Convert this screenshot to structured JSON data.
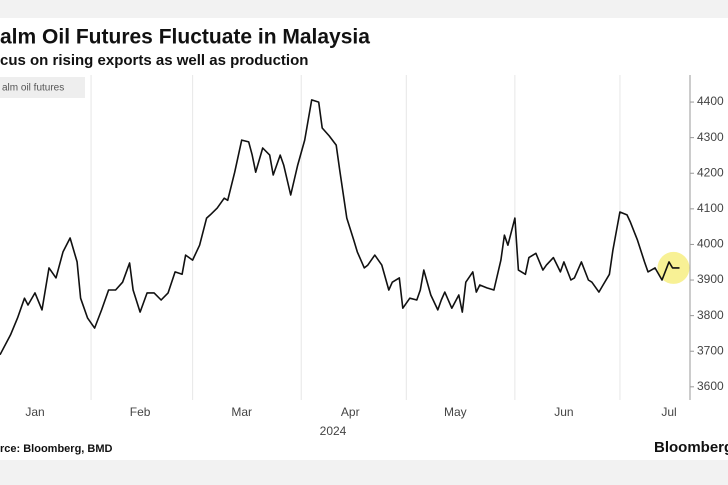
{
  "chart_data": {
    "type": "line",
    "title": "alm Oil Futures Fluctuate in Malaysia",
    "subtitle": "cus on rising exports as well as production",
    "legend_label": "alm oil futures",
    "source": "rce: Bloomberg, BMD",
    "brand": "Bloomberg",
    "year_label": "2024",
    "color": "#111111",
    "highlight_color": "#f7ef8a",
    "xlim": [
      6,
      203
    ],
    "xticks": [
      {
        "value": 16,
        "label": "Jan"
      },
      {
        "value": 46,
        "label": "Feb"
      },
      {
        "value": 75,
        "label": "Mar"
      },
      {
        "value": 106,
        "label": "Apr"
      },
      {
        "value": 136,
        "label": "May"
      },
      {
        "value": 167,
        "label": "Jun"
      },
      {
        "value": 197,
        "label": "Jul"
      }
    ],
    "xgrid": [
      32,
      61,
      92,
      122,
      153,
      183
    ],
    "ylim": [
      3563,
      4476
    ],
    "yticks": [
      3600,
      3700,
      3800,
      3900,
      4000,
      4100,
      4200,
      4300,
      4400
    ],
    "x": [
      6,
      9,
      11,
      13,
      14,
      16,
      18,
      20,
      22,
      24,
      26,
      28,
      29,
      31,
      33,
      35,
      37,
      39,
      41,
      43,
      44,
      46,
      48,
      50,
      52,
      54,
      56,
      58,
      59,
      61,
      63,
      65,
      66,
      68,
      70,
      71,
      73,
      75,
      77,
      78,
      79,
      81,
      83,
      84,
      86,
      87,
      89,
      91,
      93,
      95,
      97,
      98,
      100,
      102,
      103,
      105,
      107,
      108,
      110,
      111,
      113,
      115,
      117,
      118,
      120,
      121,
      123,
      125,
      126,
      127,
      129,
      131,
      132,
      133,
      135,
      137,
      138,
      139,
      141,
      142,
      143,
      145,
      147,
      149,
      150,
      151,
      153,
      154,
      156,
      157,
      159,
      161,
      162,
      164,
      166,
      167,
      169,
      170,
      172,
      174,
      175,
      177,
      178,
      180,
      181,
      183,
      185,
      186,
      188,
      190,
      191,
      193,
      195,
      197,
      198,
      200
    ],
    "values": [
      3690,
      3746,
      3793,
      3849,
      3830,
      3864,
      3816,
      3934,
      3906,
      3979,
      4018,
      3951,
      3849,
      3793,
      3765,
      3816,
      3872,
      3872,
      3894,
      3948,
      3872,
      3810,
      3864,
      3864,
      3844,
      3864,
      3923,
      3916,
      3970,
      3956,
      3998,
      4074,
      4083,
      4102,
      4130,
      4124,
      4203,
      4293,
      4288,
      4251,
      4203,
      4271,
      4251,
      4195,
      4251,
      4223,
      4139,
      4223,
      4293,
      4406,
      4400,
      4327,
      4305,
      4279,
      4209,
      4074,
      4012,
      3979,
      3934,
      3942,
      3970,
      3942,
      3872,
      3894,
      3906,
      3821,
      3849,
      3844,
      3872,
      3928,
      3858,
      3816,
      3844,
      3866,
      3821,
      3858,
      3810,
      3894,
      3923,
      3866,
      3886,
      3878,
      3872,
      3956,
      4026,
      3998,
      4074,
      3928,
      3916,
      3963,
      3975,
      3928,
      3942,
      3963,
      3923,
      3951,
      3900,
      3906,
      3951,
      3900,
      3894,
      3866,
      3883,
      3916,
      3984,
      4091,
      4083,
      4062,
      4012,
      3951,
      3923,
      3934,
      3900,
      3951,
      3934,
      3934
    ]
  }
}
